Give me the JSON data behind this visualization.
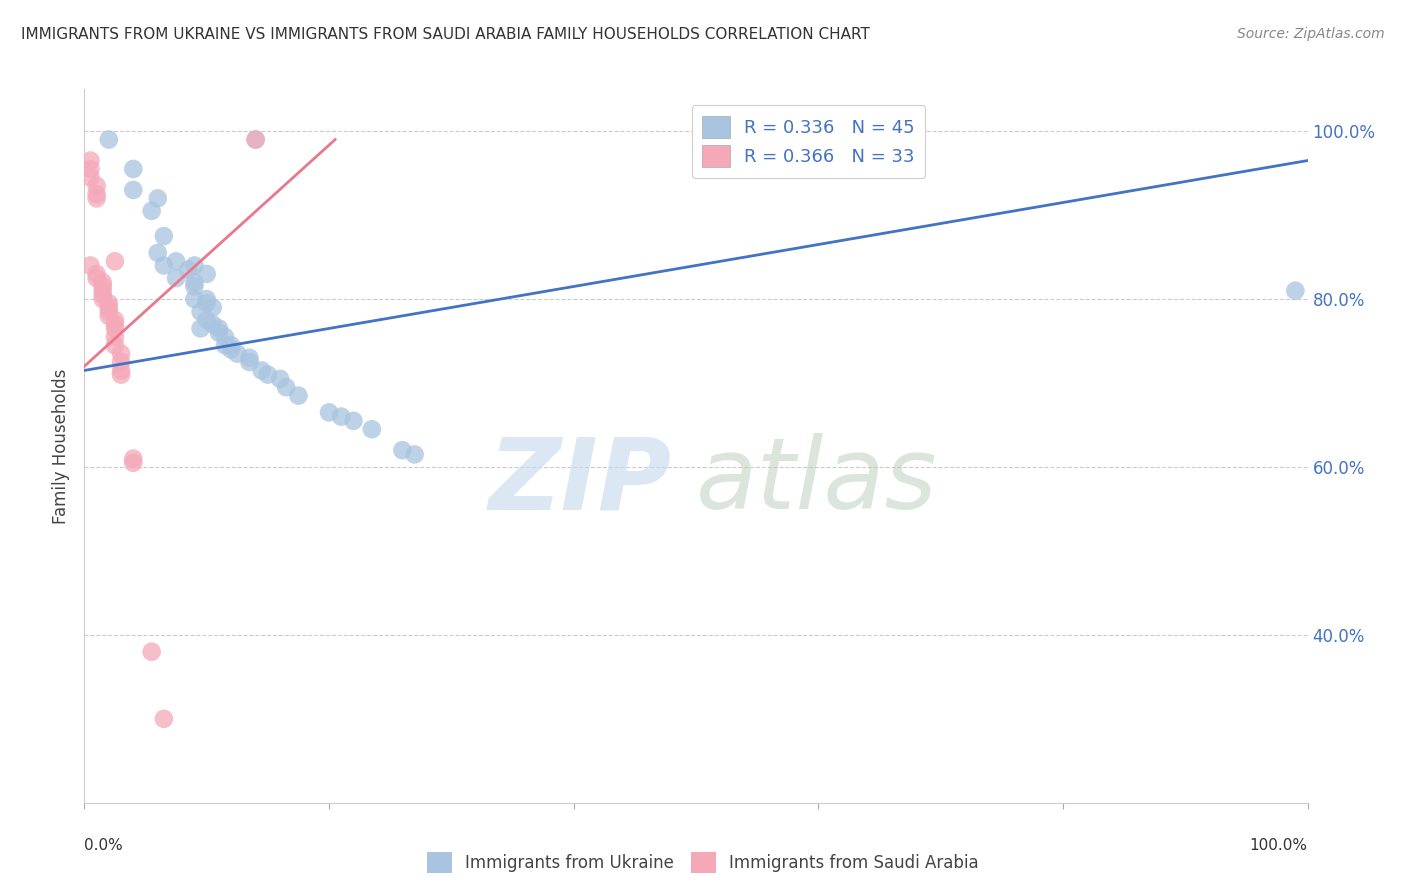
{
  "title": "IMMIGRANTS FROM UKRAINE VS IMMIGRANTS FROM SAUDI ARABIA FAMILY HOUSEHOLDS CORRELATION CHART",
  "source": "Source: ZipAtlas.com",
  "ylabel": "Family Households",
  "y_ticks_right": [
    "100.0%",
    "80.0%",
    "60.0%",
    "40.0%"
  ],
  "y_ticks_right_vals": [
    1.0,
    0.8,
    0.6,
    0.4
  ],
  "xlim": [
    0,
    1
  ],
  "ylim": [
    0.2,
    1.05
  ],
  "legend_ukraine_r": "R = 0.336",
  "legend_ukraine_n": "N = 45",
  "legend_saudi_r": "R = 0.366",
  "legend_saudi_n": "N = 33",
  "ukraine_color": "#a8c4e0",
  "saudi_color": "#f4a8b8",
  "ukraine_line_color": "#4472C4",
  "saudi_line_color": "#e8788a",
  "ukraine_scatter": [
    [
      0.02,
      0.99
    ],
    [
      0.14,
      0.99
    ],
    [
      0.04,
      0.955
    ],
    [
      0.04,
      0.93
    ],
    [
      0.06,
      0.92
    ],
    [
      0.055,
      0.905
    ],
    [
      0.065,
      0.875
    ],
    [
      0.06,
      0.855
    ],
    [
      0.075,
      0.845
    ],
    [
      0.065,
      0.84
    ],
    [
      0.09,
      0.84
    ],
    [
      0.085,
      0.835
    ],
    [
      0.1,
      0.83
    ],
    [
      0.075,
      0.825
    ],
    [
      0.09,
      0.82
    ],
    [
      0.09,
      0.815
    ],
    [
      0.09,
      0.8
    ],
    [
      0.1,
      0.8
    ],
    [
      0.1,
      0.795
    ],
    [
      0.105,
      0.79
    ],
    [
      0.095,
      0.785
    ],
    [
      0.1,
      0.775
    ],
    [
      0.105,
      0.77
    ],
    [
      0.095,
      0.765
    ],
    [
      0.11,
      0.765
    ],
    [
      0.11,
      0.76
    ],
    [
      0.115,
      0.755
    ],
    [
      0.115,
      0.745
    ],
    [
      0.12,
      0.745
    ],
    [
      0.12,
      0.74
    ],
    [
      0.125,
      0.735
    ],
    [
      0.135,
      0.73
    ],
    [
      0.135,
      0.725
    ],
    [
      0.145,
      0.715
    ],
    [
      0.15,
      0.71
    ],
    [
      0.16,
      0.705
    ],
    [
      0.165,
      0.695
    ],
    [
      0.175,
      0.685
    ],
    [
      0.2,
      0.665
    ],
    [
      0.21,
      0.66
    ],
    [
      0.22,
      0.655
    ],
    [
      0.235,
      0.645
    ],
    [
      0.26,
      0.62
    ],
    [
      0.27,
      0.615
    ],
    [
      0.99,
      0.81
    ]
  ],
  "saudi_scatter": [
    [
      0.14,
      0.99
    ],
    [
      0.005,
      0.965
    ],
    [
      0.005,
      0.955
    ],
    [
      0.005,
      0.945
    ],
    [
      0.01,
      0.935
    ],
    [
      0.01,
      0.925
    ],
    [
      0.01,
      0.92
    ],
    [
      0.025,
      0.845
    ],
    [
      0.005,
      0.84
    ],
    [
      0.01,
      0.83
    ],
    [
      0.01,
      0.825
    ],
    [
      0.015,
      0.82
    ],
    [
      0.015,
      0.815
    ],
    [
      0.015,
      0.81
    ],
    [
      0.015,
      0.805
    ],
    [
      0.015,
      0.8
    ],
    [
      0.02,
      0.795
    ],
    [
      0.02,
      0.79
    ],
    [
      0.02,
      0.785
    ],
    [
      0.02,
      0.78
    ],
    [
      0.025,
      0.775
    ],
    [
      0.025,
      0.77
    ],
    [
      0.025,
      0.765
    ],
    [
      0.025,
      0.755
    ],
    [
      0.025,
      0.745
    ],
    [
      0.03,
      0.735
    ],
    [
      0.03,
      0.725
    ],
    [
      0.03,
      0.715
    ],
    [
      0.03,
      0.71
    ],
    [
      0.04,
      0.61
    ],
    [
      0.04,
      0.605
    ],
    [
      0.055,
      0.38
    ],
    [
      0.065,
      0.3
    ]
  ],
  "ukraine_trendline": [
    [
      0.0,
      0.715
    ],
    [
      1.0,
      0.965
    ]
  ],
  "saudi_trendline": [
    [
      0.0,
      0.72
    ],
    [
      0.205,
      0.99
    ]
  ],
  "grid_color": "#cccccc",
  "background_color": "#ffffff",
  "figsize": [
    14.06,
    8.92
  ],
  "dpi": 100
}
